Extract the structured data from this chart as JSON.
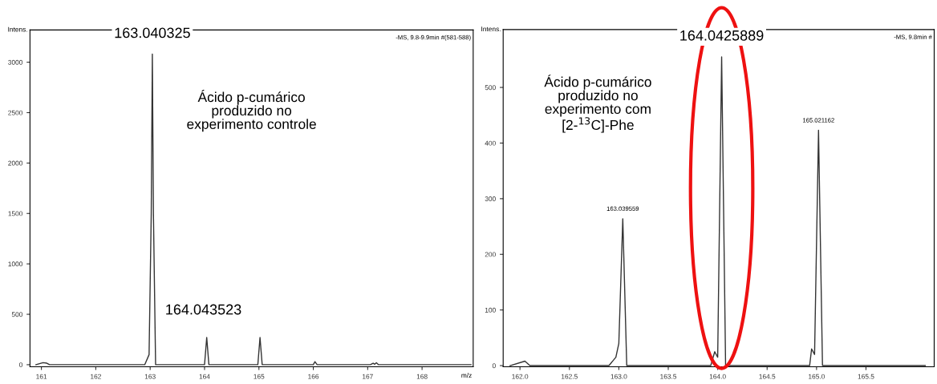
{
  "chart_data": [
    {
      "type": "line",
      "xlabel": "m/z",
      "ylabel": "Intens.",
      "xlim": [
        160.79,
        168.94
      ],
      "ylim": [
        -20,
        3320
      ],
      "xticks": [
        161,
        162,
        163,
        164,
        165,
        166,
        167,
        168
      ],
      "yticks": [
        0,
        500,
        1000,
        1500,
        2000,
        2500,
        3000
      ],
      "grid": false,
      "legend": false,
      "marker": "none",
      "line_style": "solid",
      "series": [
        {
          "color": "#333333",
          "x": [
            160.9,
            161.03,
            161.1,
            161.15,
            162.9,
            162.98,
            163.02,
            163.04,
            163.06,
            163.1,
            164.0,
            164.04,
            164.08,
            164.98,
            165.02,
            165.06,
            166.0,
            166.03,
            166.07,
            167.05,
            167.1,
            167.13,
            167.16,
            167.2,
            168.9
          ],
          "values": [
            0,
            20,
            15,
            0,
            0,
            100,
            1500,
            3080,
            1500,
            0,
            0,
            270,
            0,
            0,
            270,
            0,
            0,
            30,
            0,
            0,
            15,
            5,
            20,
            0,
            0
          ]
        }
      ],
      "annotations": [
        {
          "text": "163.040325",
          "x": 163.04,
          "y": 3080
        },
        {
          "text": "164.043523",
          "x": 164.04,
          "y": 270
        },
        "Ácido p-cumárico\nproduzido no\nexperimento controle",
        "-MS, 9.8-9.9min #(581-588)"
      ]
    },
    {
      "type": "line",
      "ylabel": "Intens.",
      "xlim": [
        161.83,
        166.19
      ],
      "ylim": [
        -2,
        604
      ],
      "xticks": [
        {
          "value": 162,
          "label": "162.0"
        },
        {
          "value": 162.5,
          "label": "162.5"
        },
        {
          "value": 163,
          "label": "163.0"
        },
        {
          "value": 163.5,
          "label": "163.5"
        },
        {
          "value": 164,
          "label": "164.0"
        },
        {
          "value": 164.5,
          "label": "164.5"
        },
        {
          "value": 165,
          "label": "165.0"
        },
        {
          "value": 165.5,
          "label": "165.5"
        }
      ],
      "yticks": [
        0,
        100,
        200,
        300,
        400,
        500
      ],
      "grid": false,
      "legend": false,
      "marker": "none",
      "line_style": "solid",
      "series": [
        {
          "color": "#333333",
          "x": [
            161.9,
            162.05,
            162.1,
            162.9,
            162.97,
            163.0,
            163.04,
            163.08,
            163.93,
            163.97,
            164.0,
            164.04,
            164.08,
            164.93,
            164.95,
            164.98,
            165.02,
            165.06,
            166.1
          ],
          "values": [
            0,
            8,
            0,
            0,
            15,
            40,
            264,
            0,
            0,
            25,
            15,
            555,
            0,
            0,
            30,
            20,
            423,
            0,
            0
          ]
        }
      ],
      "annotations": [
        {
          "text": "163.039559",
          "x": 163.04,
          "y": 264
        },
        {
          "text": "164.0425889",
          "x": 164.04,
          "y": 555
        },
        {
          "text": "165.021162",
          "x": 165.02,
          "y": 423
        },
        "Ácido p-cumárico\nproduzido no\nexperimento com\n[2-$^{13}$C]-Phe",
        "-MS, 9.8min #"
      ]
    }
  ]
}
